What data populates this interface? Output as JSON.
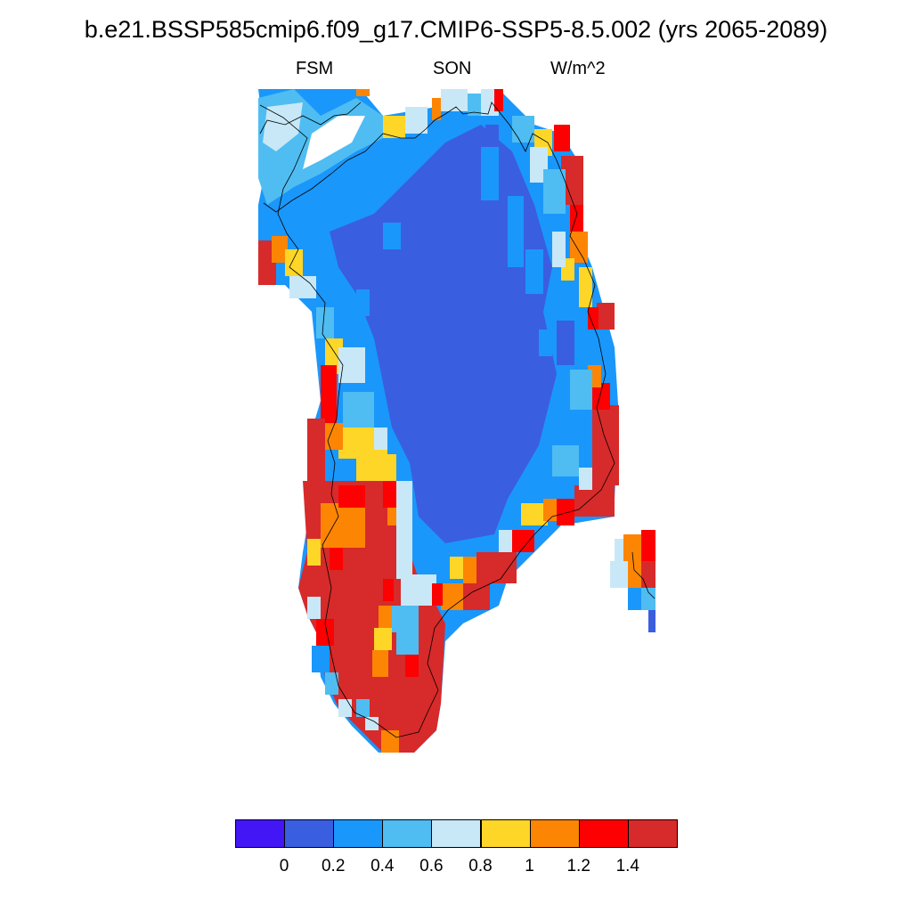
{
  "title": "b.e21.BSSP585cmip6.f09_g17.CMIP6-SSP5-8.5.002 (yrs 2065-2089)",
  "subtitle_left": "FSM",
  "subtitle_center": "SON",
  "subtitle_right": "W/m^2",
  "colorbar": {
    "colors": [
      "#4216f5",
      "#3a5ee0",
      "#1a97fb",
      "#4fbdf2",
      "#c8e8f7",
      "#fdd628",
      "#fd8504",
      "#fd0002",
      "#d72a2a"
    ],
    "labels": [
      "0",
      "0.2",
      "0.4",
      "0.6",
      "0.8",
      "1",
      "1.2",
      "1.4"
    ]
  }
}
